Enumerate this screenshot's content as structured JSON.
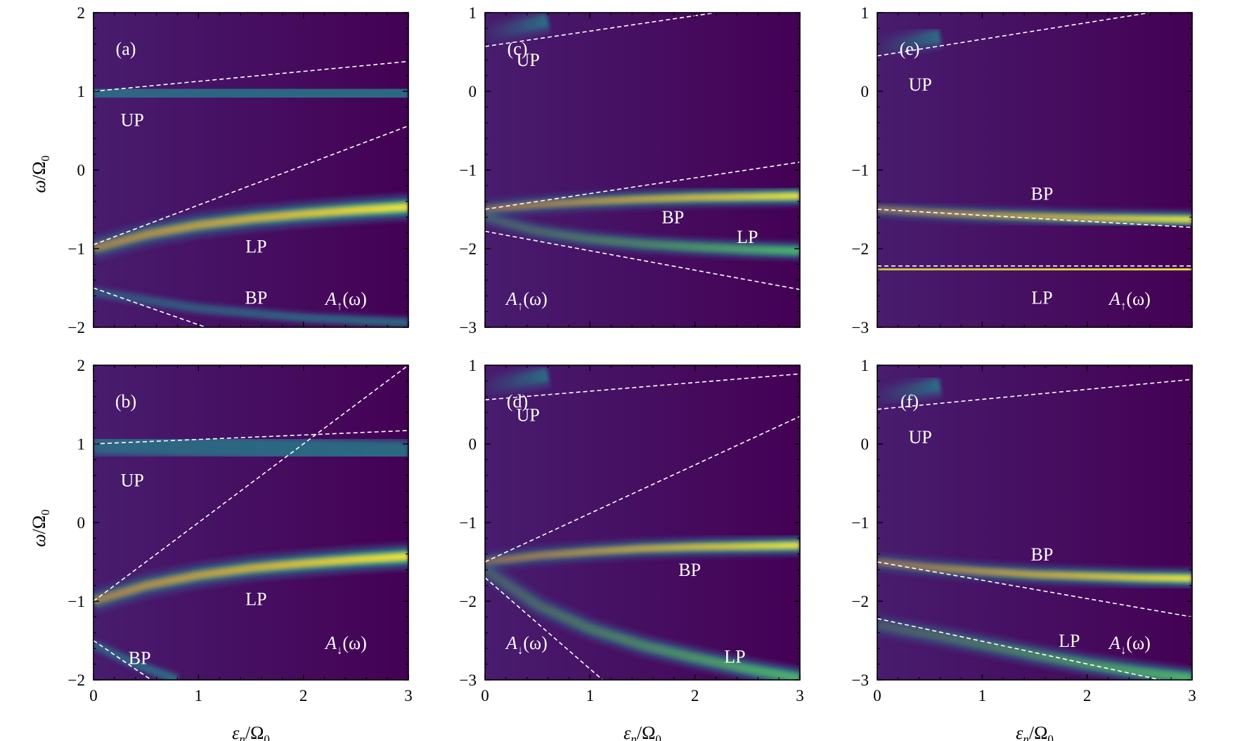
{
  "figure": {
    "xlabel": {
      "sym": "ε",
      "sub": "n",
      "div": "/Ω",
      "sub2": "0"
    },
    "ylabel": {
      "sym": "ω",
      "div": "/Ω",
      "sub2": "0"
    },
    "colors": {
      "background": "#440154",
      "band_low": "#3b528b",
      "band_mid": "#21918c",
      "band_high": "#5ec962",
      "band_peak": "#fde725",
      "guide": "#ffffff"
    }
  },
  "chart_data": [
    {
      "type": "heatmap",
      "panel": "(a)",
      "spectral_label": {
        "sym": "A",
        "sub": "↑",
        "tail": "(ω)"
      },
      "xlim": [
        0,
        3
      ],
      "ylim": [
        -2,
        2
      ],
      "xticks": [
        "0",
        "1",
        "2",
        "3"
      ],
      "yticks": [
        "2",
        "1",
        "0",
        "−1",
        "−2"
      ],
      "x_ticklabels_shown": false,
      "y_ticklabels_shown": true,
      "bands": [
        {
          "name": "UP",
          "x": [
            0,
            3
          ],
          "y": [
            1.0,
            0.95
          ],
          "intensity": 0.38,
          "width": 0.11,
          "fade": 0.1
        },
        {
          "name": "LP",
          "x": [
            0,
            0.5,
            1,
            1.5,
            2,
            2.5,
            3
          ],
          "y": [
            -1.0,
            -0.82,
            -0.7,
            -0.62,
            -0.56,
            -0.51,
            -0.47
          ],
          "intensity": 1.0,
          "width": 0.07,
          "fade": 0.5
        },
        {
          "name": "BP",
          "x": [
            0,
            1,
            2,
            3
          ],
          "y": [
            -1.55,
            -1.76,
            -1.88,
            -1.94
          ],
          "intensity": 0.35,
          "width": 0.04,
          "fade": 0.3
        }
      ],
      "guides": [
        {
          "x": [
            0,
            3
          ],
          "y": [
            1.0,
            1.38
          ]
        },
        {
          "x": [
            0,
            3
          ],
          "y": [
            -0.95,
            0.56
          ]
        },
        {
          "x": [
            0,
            1.07
          ],
          "y": [
            -1.5,
            -2.0
          ]
        }
      ],
      "labels": [
        {
          "text": "UP",
          "x": 0.37,
          "y": 0.64
        },
        {
          "text": "LP",
          "x": 1.55,
          "y": -0.97
        },
        {
          "text": "BP",
          "x": 1.55,
          "y": -1.62
        }
      ]
    },
    {
      "type": "heatmap",
      "panel": "(b)",
      "spectral_label": {
        "sym": "A",
        "sub": "↓",
        "tail": "(ω)"
      },
      "xlim": [
        0,
        3
      ],
      "ylim": [
        -2,
        2
      ],
      "xticks": [
        "0",
        "1",
        "2",
        "3"
      ],
      "yticks": [
        "2",
        "1",
        "0",
        "−1",
        "−2"
      ],
      "x_ticklabels_shown": true,
      "y_ticklabels_shown": true,
      "bands": [
        {
          "name": "UP",
          "x": [
            0,
            3
          ],
          "y": [
            1.0,
            0.9
          ],
          "intensity": 0.38,
          "width": 0.12,
          "fade": 0.1
        },
        {
          "name": "LP",
          "x": [
            0,
            0.5,
            1,
            1.5,
            2,
            2.5,
            3
          ],
          "y": [
            -1.0,
            -0.8,
            -0.67,
            -0.58,
            -0.52,
            -0.47,
            -0.43
          ],
          "intensity": 1.0,
          "width": 0.07,
          "fade": 0.5
        },
        {
          "name": "BP",
          "x": [
            0,
            0.4,
            0.8
          ],
          "y": [
            -1.55,
            -1.8,
            -2.0
          ],
          "intensity": 0.35,
          "width": 0.04,
          "fade": 0.2
        }
      ],
      "guides": [
        {
          "x": [
            0,
            3
          ],
          "y": [
            1.0,
            1.17
          ]
        },
        {
          "x": [
            0,
            3
          ],
          "y": [
            -1.0,
            2.0
          ]
        },
        {
          "x": [
            0,
            0.55
          ],
          "y": [
            -1.5,
            -2.0
          ]
        }
      ],
      "labels": [
        {
          "text": "UP",
          "x": 0.37,
          "y": 0.54
        },
        {
          "text": "LP",
          "x": 1.55,
          "y": -0.97
        },
        {
          "text": "BP",
          "x": 0.44,
          "y": -1.72
        }
      ]
    },
    {
      "type": "heatmap",
      "panel": "(c)",
      "spectral_label": {
        "sym": "A",
        "sub": "↑",
        "tail": "(ω)"
      },
      "xlim": [
        0,
        3
      ],
      "ylim": [
        -3,
        1
      ],
      "xticks": [
        "0",
        "1",
        "2",
        "3"
      ],
      "yticks": [
        "1",
        "0",
        "−1",
        "−2",
        "−3"
      ],
      "x_ticklabels_shown": false,
      "y_ticklabels_shown": true,
      "bands": [
        {
          "name": "UP",
          "x": [
            0,
            0.6
          ],
          "y": [
            0.72,
            0.9
          ],
          "intensity": 0.3,
          "width": 0.08,
          "fade": 0.9
        },
        {
          "name": "BP",
          "x": [
            0,
            0.5,
            1,
            1.5,
            2,
            2.5,
            3
          ],
          "y": [
            -1.5,
            -1.44,
            -1.4,
            -1.37,
            -1.35,
            -1.34,
            -1.33
          ],
          "intensity": 0.95,
          "width": 0.055,
          "fade": 0.6
        },
        {
          "name": "LP",
          "x": [
            0,
            0.5,
            1,
            1.5,
            2,
            2.5,
            3
          ],
          "y": [
            -1.6,
            -1.78,
            -1.88,
            -1.94,
            -1.98,
            -2.01,
            -2.03
          ],
          "intensity": 0.75,
          "width": 0.05,
          "fade": 0.6
        }
      ],
      "guides": [
        {
          "x": [
            0,
            2.2
          ],
          "y": [
            0.57,
            1.0
          ]
        },
        {
          "x": [
            0,
            3
          ],
          "y": [
            -1.5,
            -0.9
          ]
        },
        {
          "x": [
            0,
            3
          ],
          "y": [
            -1.78,
            -2.52
          ]
        }
      ],
      "labels": [
        {
          "text": "UP",
          "x": 0.41,
          "y": 0.4
        },
        {
          "text": "BP",
          "x": 1.79,
          "y": -1.6
        },
        {
          "text": "LP",
          "x": 2.5,
          "y": -1.85
        }
      ]
    },
    {
      "type": "heatmap",
      "panel": "(d)",
      "spectral_label": {
        "sym": "A",
        "sub": "↓",
        "tail": "(ω)"
      },
      "xlim": [
        0,
        3
      ],
      "ylim": [
        -3,
        1
      ],
      "xticks": [
        "0",
        "1",
        "2",
        "3"
      ],
      "yticks": [
        "1",
        "0",
        "−1",
        "−2",
        "−3"
      ],
      "x_ticklabels_shown": true,
      "y_ticklabels_shown": true,
      "bands": [
        {
          "name": "UP",
          "x": [
            0,
            0.6
          ],
          "y": [
            0.72,
            0.88
          ],
          "intensity": 0.3,
          "width": 0.08,
          "fade": 0.9
        },
        {
          "name": "BP",
          "x": [
            0,
            0.5,
            1,
            1.5,
            2,
            2.5,
            3
          ],
          "y": [
            -1.5,
            -1.42,
            -1.37,
            -1.33,
            -1.31,
            -1.3,
            -1.29
          ],
          "intensity": 1.0,
          "width": 0.055,
          "fade": 0.6
        },
        {
          "name": "LP",
          "x": [
            0,
            0.5,
            1,
            1.5,
            2,
            2.5,
            3
          ],
          "y": [
            -1.6,
            -2.05,
            -2.35,
            -2.56,
            -2.72,
            -2.86,
            -2.98
          ],
          "intensity": 0.55,
          "width": 0.06,
          "fade": 0.6
        }
      ],
      "guides": [
        {
          "x": [
            0,
            3
          ],
          "y": [
            0.56,
            0.89
          ]
        },
        {
          "x": [
            0,
            3
          ],
          "y": [
            -1.5,
            0.35
          ]
        },
        {
          "x": [
            0,
            1.12
          ],
          "y": [
            -1.7,
            -3.0
          ]
        }
      ],
      "labels": [
        {
          "text": "UP",
          "x": 0.41,
          "y": 0.37
        },
        {
          "text": "BP",
          "x": 1.95,
          "y": -1.6
        },
        {
          "text": "LP",
          "x": 2.38,
          "y": -2.7
        }
      ]
    },
    {
      "type": "heatmap",
      "panel": "(e)",
      "spectral_label": {
        "sym": "A",
        "sub": "↑",
        "tail": "(ω)"
      },
      "xlim": [
        0,
        3
      ],
      "ylim": [
        -3,
        1
      ],
      "xticks": [
        "0",
        "1",
        "2",
        "3"
      ],
      "yticks": [
        "1",
        "0",
        "−1",
        "−2",
        "−3"
      ],
      "x_ticklabels_shown": false,
      "y_ticklabels_shown": true,
      "bands": [
        {
          "name": "UP",
          "x": [
            0,
            0.6
          ],
          "y": [
            0.55,
            0.7
          ],
          "intensity": 0.3,
          "width": 0.08,
          "fade": 0.9
        },
        {
          "name": "BP",
          "x": [
            0,
            0.5,
            1,
            1.5,
            2,
            2.5,
            3
          ],
          "y": [
            -1.5,
            -1.54,
            -1.57,
            -1.59,
            -1.61,
            -1.62,
            -1.63
          ],
          "intensity": 0.85,
          "width": 0.05,
          "fade": 0.6
        },
        {
          "name": "LP",
          "x": [
            0,
            3
          ],
          "y": [
            -2.26,
            -2.27
          ],
          "intensity": 1.0,
          "width": 0.065,
          "fade": 0.15
        }
      ],
      "guides": [
        {
          "x": [
            0,
            2.6
          ],
          "y": [
            0.45,
            1.0
          ]
        },
        {
          "x": [
            0,
            3
          ],
          "y": [
            -1.5,
            -1.73
          ]
        },
        {
          "x": [
            0,
            3
          ],
          "y": [
            -2.22,
            -2.22
          ]
        }
      ],
      "labels": [
        {
          "text": "UP",
          "x": 0.41,
          "y": 0.09
        },
        {
          "text": "BP",
          "x": 1.57,
          "y": -1.3
        },
        {
          "text": "LP",
          "x": 1.57,
          "y": -2.62
        }
      ]
    },
    {
      "type": "heatmap",
      "panel": "(f)",
      "spectral_label": {
        "sym": "A",
        "sub": "↓",
        "tail": "(ω)"
      },
      "xlim": [
        0,
        3
      ],
      "ylim": [
        -3,
        1
      ],
      "xticks": [
        "0",
        "1",
        "2",
        "3"
      ],
      "yticks": [
        "1",
        "0",
        "−1",
        "−2",
        "−3"
      ],
      "x_ticklabels_shown": true,
      "y_ticklabels_shown": true,
      "bands": [
        {
          "name": "UP",
          "x": [
            0,
            0.6
          ],
          "y": [
            0.6,
            0.75
          ],
          "intensity": 0.3,
          "width": 0.08,
          "fade": 0.9
        },
        {
          "name": "BP",
          "x": [
            0,
            0.5,
            1,
            1.5,
            2,
            2.5,
            3
          ],
          "y": [
            -1.5,
            -1.57,
            -1.62,
            -1.66,
            -1.68,
            -1.7,
            -1.71
          ],
          "intensity": 1.0,
          "width": 0.055,
          "fade": 0.6
        },
        {
          "name": "LP",
          "x": [
            0,
            0.5,
            1,
            1.5,
            2,
            2.5,
            3
          ],
          "y": [
            -2.3,
            -2.42,
            -2.55,
            -2.68,
            -2.8,
            -2.9,
            -2.98
          ],
          "intensity": 0.7,
          "width": 0.06,
          "fade": 0.6
        }
      ],
      "guides": [
        {
          "x": [
            0,
            3
          ],
          "y": [
            0.44,
            0.82
          ]
        },
        {
          "x": [
            0,
            3
          ],
          "y": [
            -1.5,
            -2.2
          ]
        },
        {
          "x": [
            0,
            2.7
          ],
          "y": [
            -2.22,
            -3.0
          ]
        }
      ],
      "labels": [
        {
          "text": "UP",
          "x": 0.41,
          "y": 0.09
        },
        {
          "text": "BP",
          "x": 1.57,
          "y": -1.4
        },
        {
          "text": "LP",
          "x": 1.83,
          "y": -2.5
        }
      ]
    }
  ]
}
